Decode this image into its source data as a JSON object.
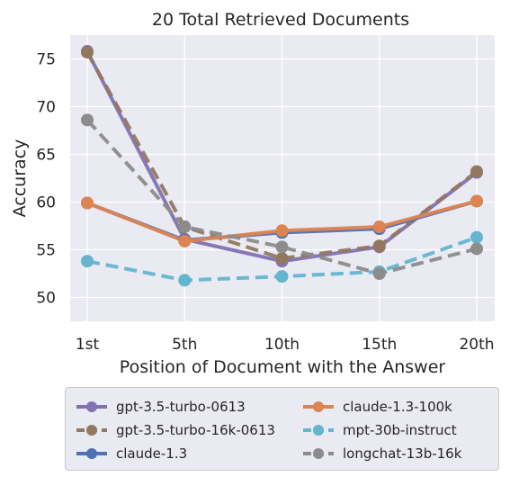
{
  "chart_data": {
    "type": "line",
    "title": "20 Total Retrieved Documents",
    "xlabel": "Position of Document with the Answer",
    "ylabel": "Accuracy",
    "categories": [
      "1st",
      "5th",
      "10th",
      "15th",
      "20th"
    ],
    "ylim": [
      47.5,
      77.5
    ],
    "yticks": [
      50,
      55,
      60,
      65,
      70,
      75
    ],
    "grid": true,
    "legend_position": "bottom",
    "series": [
      {
        "name": "gpt-3.5-turbo-0613",
        "color": "#8172b3",
        "dashed": false,
        "values": [
          75.8,
          56.1,
          53.8,
          55.3,
          63.1
        ]
      },
      {
        "name": "gpt-3.5-turbo-16k-0613",
        "color": "#937860",
        "dashed": true,
        "values": [
          75.7,
          57.4,
          54.1,
          55.4,
          63.2
        ]
      },
      {
        "name": "claude-1.3",
        "color": "#4c72b0",
        "dashed": false,
        "values": [
          59.9,
          56.0,
          56.8,
          57.2,
          60.1
        ]
      },
      {
        "name": "claude-1.3-100k",
        "color": "#dd8452",
        "dashed": false,
        "values": [
          59.9,
          55.9,
          57.0,
          57.4,
          60.1
        ]
      },
      {
        "name": "mpt-30b-instruct",
        "color": "#64b5cd",
        "dashed": true,
        "values": [
          53.8,
          51.8,
          52.2,
          52.7,
          56.3
        ]
      },
      {
        "name": "longchat-13b-16k",
        "color": "#8c8c8c",
        "dashed": true,
        "values": [
          68.6,
          57.4,
          55.3,
          52.5,
          55.1
        ]
      }
    ]
  }
}
